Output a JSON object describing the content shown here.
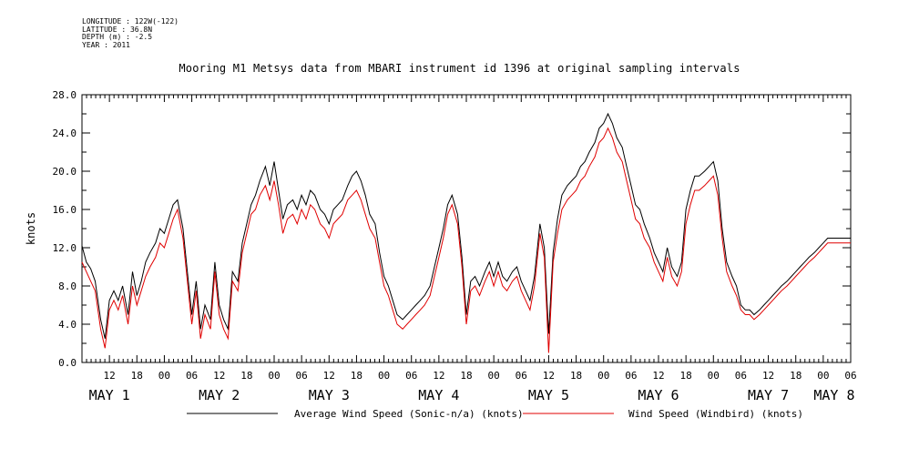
{
  "header": {
    "longitude": "LONGITUDE : 122W(-122)",
    "latitude": "LATITUDE : 36.8N",
    "depth": "DEPTH (m) : -2.5",
    "year": "YEAR : 2011"
  },
  "chart_data": {
    "type": "line",
    "title": "Mooring M1 Metsys data from MBARI instrument id 1396 at original sampling intervals",
    "ylabel": "knots",
    "ylim": [
      0,
      28
    ],
    "yticks": [
      "0.0",
      "4.0",
      "8.0",
      "12.0",
      "16.0",
      "20.0",
      "24.0",
      "28.0"
    ],
    "xlim": [
      1.25,
      8.25
    ],
    "x_unit": "days of May 2011 (hour ticks every 6h)",
    "hour_ticks": [
      {
        "x": 1.5,
        "label": "12"
      },
      {
        "x": 1.75,
        "label": "18"
      },
      {
        "x": 2.0,
        "label": "00"
      },
      {
        "x": 2.25,
        "label": "06"
      },
      {
        "x": 2.5,
        "label": "12"
      },
      {
        "x": 2.75,
        "label": "18"
      },
      {
        "x": 3.0,
        "label": "00"
      },
      {
        "x": 3.25,
        "label": "06"
      },
      {
        "x": 3.5,
        "label": "12"
      },
      {
        "x": 3.75,
        "label": "18"
      },
      {
        "x": 4.0,
        "label": "00"
      },
      {
        "x": 4.25,
        "label": "06"
      },
      {
        "x": 4.5,
        "label": "12"
      },
      {
        "x": 4.75,
        "label": "18"
      },
      {
        "x": 5.0,
        "label": "00"
      },
      {
        "x": 5.25,
        "label": "06"
      },
      {
        "x": 5.5,
        "label": "12"
      },
      {
        "x": 5.75,
        "label": "18"
      },
      {
        "x": 6.0,
        "label": "00"
      },
      {
        "x": 6.25,
        "label": "06"
      },
      {
        "x": 6.5,
        "label": "12"
      },
      {
        "x": 6.75,
        "label": "18"
      },
      {
        "x": 7.0,
        "label": "00"
      },
      {
        "x": 7.25,
        "label": "06"
      },
      {
        "x": 7.5,
        "label": "12"
      },
      {
        "x": 7.75,
        "label": "18"
      },
      {
        "x": 8.0,
        "label": "00"
      },
      {
        "x": 8.25,
        "label": "06"
      }
    ],
    "day_labels": [
      {
        "x": 1.5,
        "label": "MAY  1"
      },
      {
        "x": 2.5,
        "label": "MAY  2"
      },
      {
        "x": 3.5,
        "label": "MAY  3"
      },
      {
        "x": 4.5,
        "label": "MAY  4"
      },
      {
        "x": 5.5,
        "label": "MAY  5"
      },
      {
        "x": 6.5,
        "label": "MAY  6"
      },
      {
        "x": 7.5,
        "label": "MAY  7"
      },
      {
        "x": 8.1,
        "label": "MAY  8"
      }
    ],
    "series": [
      {
        "name": "Average Wind Speed (Sonic-n/a) (knots)",
        "color": "#000000",
        "x": [
          1.25,
          1.29,
          1.33,
          1.37,
          1.42,
          1.46,
          1.5,
          1.54,
          1.58,
          1.62,
          1.67,
          1.71,
          1.75,
          1.79,
          1.83,
          1.87,
          1.92,
          1.96,
          2.0,
          2.04,
          2.08,
          2.12,
          2.17,
          2.21,
          2.25,
          2.29,
          2.33,
          2.37,
          2.42,
          2.46,
          2.5,
          2.54,
          2.58,
          2.62,
          2.67,
          2.71,
          2.75,
          2.79,
          2.83,
          2.87,
          2.92,
          2.96,
          3.0,
          3.04,
          3.08,
          3.12,
          3.17,
          3.21,
          3.25,
          3.29,
          3.33,
          3.37,
          3.42,
          3.46,
          3.5,
          3.54,
          3.58,
          3.62,
          3.67,
          3.71,
          3.75,
          3.79,
          3.83,
          3.87,
          3.92,
          3.96,
          4.0,
          4.04,
          4.08,
          4.12,
          4.17,
          4.21,
          4.25,
          4.29,
          4.33,
          4.37,
          4.42,
          4.46,
          4.5,
          4.54,
          4.58,
          4.62,
          4.67,
          4.71,
          4.75,
          4.79,
          4.83,
          4.87,
          4.92,
          4.96,
          5.0,
          5.04,
          5.08,
          5.12,
          5.17,
          5.21,
          5.25,
          5.29,
          5.33,
          5.37,
          5.42,
          5.46,
          5.5,
          5.54,
          5.58,
          5.62,
          5.67,
          5.71,
          5.75,
          5.79,
          5.83,
          5.87,
          5.92,
          5.96,
          6.0,
          6.04,
          6.08,
          6.12,
          6.17,
          6.21,
          6.25,
          6.29,
          6.33,
          6.37,
          6.42,
          6.46,
          6.5,
          6.54,
          6.58,
          6.62,
          6.67,
          6.71,
          6.75,
          6.79,
          6.83,
          6.87,
          6.92,
          6.96,
          7.0,
          7.04,
          7.08,
          7.12,
          7.17,
          7.21,
          7.25,
          7.29,
          7.33,
          7.37,
          7.42,
          7.46,
          7.5,
          7.54,
          7.58,
          7.62,
          7.67,
          7.71,
          7.75,
          7.79,
          7.83,
          7.87,
          7.92,
          7.96,
          8.0,
          8.04,
          8.08,
          8.12,
          8.17,
          8.21,
          8.25
        ],
        "values": [
          12.2,
          10.5,
          9.8,
          8.5,
          4.5,
          2.5,
          6.5,
          7.5,
          6.5,
          8.0,
          5.0,
          9.5,
          7.0,
          8.5,
          10.5,
          11.5,
          12.5,
          14.0,
          13.5,
          15.0,
          16.5,
          17.0,
          14.0,
          9.5,
          5.0,
          8.5,
          3.5,
          6.0,
          4.5,
          10.5,
          6.0,
          4.5,
          3.5,
          9.5,
          8.5,
          12.5,
          14.5,
          16.5,
          17.5,
          19.0,
          20.5,
          18.5,
          21.0,
          18.0,
          15.0,
          16.5,
          17.0,
          16.0,
          17.5,
          16.5,
          18.0,
          17.5,
          16.0,
          15.5,
          14.5,
          16.0,
          16.5,
          17.0,
          18.5,
          19.5,
          20.0,
          19.0,
          17.5,
          15.5,
          14.5,
          11.5,
          9.0,
          8.0,
          6.5,
          5.0,
          4.5,
          5.0,
          5.5,
          6.0,
          6.5,
          7.0,
          8.0,
          10.0,
          12.0,
          14.0,
          16.5,
          17.5,
          15.5,
          11.0,
          5.0,
          8.5,
          9.0,
          8.0,
          9.5,
          10.5,
          9.0,
          10.5,
          9.0,
          8.5,
          9.5,
          10.0,
          8.5,
          7.5,
          6.5,
          9.0,
          14.5,
          12.0,
          3.0,
          11.5,
          15.0,
          17.5,
          18.5,
          19.0,
          19.5,
          20.5,
          21.0,
          22.0,
          23.0,
          24.5,
          25.0,
          26.0,
          25.0,
          23.5,
          22.5,
          20.5,
          18.5,
          16.5,
          16.0,
          14.5,
          13.0,
          11.5,
          10.5,
          9.5,
          12.0,
          10.0,
          9.0,
          10.5,
          16.0,
          18.0,
          19.5,
          19.5,
          20.0,
          20.5,
          21.0,
          19.0,
          14.0,
          10.5,
          9.0,
          8.0,
          6.0,
          5.5,
          5.5,
          5.0,
          5.5,
          6.0,
          6.5,
          7.0,
          7.5,
          8.0,
          8.5,
          9.0,
          9.5,
          10.0,
          10.5,
          11.0,
          11.5,
          12.0,
          12.5,
          13.0,
          13.0,
          13.0,
          13.0,
          13.0,
          13.0
        ],
        "note": "approximate; visual sampling"
      },
      {
        "name": "Wind Speed (Windbird) (knots)",
        "color": "#e00000",
        "x": [
          1.25,
          1.29,
          1.33,
          1.37,
          1.42,
          1.46,
          1.5,
          1.54,
          1.58,
          1.62,
          1.67,
          1.71,
          1.75,
          1.79,
          1.83,
          1.87,
          1.92,
          1.96,
          2.0,
          2.04,
          2.08,
          2.12,
          2.17,
          2.21,
          2.25,
          2.29,
          2.33,
          2.37,
          2.42,
          2.46,
          2.5,
          2.54,
          2.58,
          2.62,
          2.67,
          2.71,
          2.75,
          2.79,
          2.83,
          2.87,
          2.92,
          2.96,
          3.0,
          3.04,
          3.08,
          3.12,
          3.17,
          3.21,
          3.25,
          3.29,
          3.33,
          3.37,
          3.42,
          3.46,
          3.5,
          3.54,
          3.58,
          3.62,
          3.67,
          3.71,
          3.75,
          3.79,
          3.83,
          3.87,
          3.92,
          3.96,
          4.0,
          4.04,
          4.08,
          4.12,
          4.17,
          4.21,
          4.25,
          4.29,
          4.33,
          4.37,
          4.42,
          4.46,
          4.5,
          4.54,
          4.58,
          4.62,
          4.67,
          4.71,
          4.75,
          4.79,
          4.83,
          4.87,
          4.92,
          4.96,
          5.0,
          5.04,
          5.08,
          5.12,
          5.17,
          5.21,
          5.25,
          5.29,
          5.33,
          5.37,
          5.42,
          5.46,
          5.5,
          5.54,
          5.58,
          5.62,
          5.67,
          5.71,
          5.75,
          5.79,
          5.83,
          5.87,
          5.92,
          5.96,
          6.0,
          6.04,
          6.08,
          6.12,
          6.17,
          6.21,
          6.25,
          6.29,
          6.33,
          6.37,
          6.42,
          6.46,
          6.5,
          6.54,
          6.58,
          6.62,
          6.67,
          6.71,
          6.75,
          6.79,
          6.83,
          6.87,
          6.92,
          6.96,
          7.0,
          7.04,
          7.08,
          7.12,
          7.17,
          7.21,
          7.25,
          7.29,
          7.33,
          7.37,
          7.42,
          7.46,
          7.5,
          7.54,
          7.58,
          7.62,
          7.67,
          7.71,
          7.75,
          7.79,
          7.83,
          7.87,
          7.92,
          7.96,
          8.0,
          8.04,
          8.08,
          8.12,
          8.17,
          8.21,
          8.25
        ],
        "values": [
          10.5,
          9.5,
          8.5,
          7.5,
          3.5,
          1.5,
          5.5,
          6.5,
          5.5,
          7.0,
          4.0,
          8.0,
          6.0,
          7.5,
          9.0,
          10.0,
          11.0,
          12.5,
          12.0,
          13.5,
          15.0,
          16.0,
          13.0,
          8.5,
          4.0,
          7.5,
          2.5,
          5.0,
          3.5,
          9.5,
          5.0,
          3.5,
          2.5,
          8.5,
          7.5,
          11.5,
          13.5,
          15.5,
          16.0,
          17.5,
          18.5,
          17.0,
          19.0,
          16.5,
          13.5,
          15.0,
          15.5,
          14.5,
          16.0,
          15.0,
          16.5,
          16.0,
          14.5,
          14.0,
          13.0,
          14.5,
          15.0,
          15.5,
          17.0,
          17.5,
          18.0,
          17.0,
          15.5,
          14.0,
          13.0,
          10.5,
          8.0,
          7.0,
          5.5,
          4.0,
          3.5,
          4.0,
          4.5,
          5.0,
          5.5,
          6.0,
          7.0,
          9.0,
          11.0,
          13.0,
          15.5,
          16.5,
          14.5,
          10.0,
          4.0,
          7.5,
          8.0,
          7.0,
          8.5,
          9.5,
          8.0,
          9.5,
          8.0,
          7.5,
          8.5,
          9.0,
          7.5,
          6.5,
          5.5,
          8.0,
          13.5,
          11.0,
          1.0,
          10.5,
          13.5,
          16.0,
          17.0,
          17.5,
          18.0,
          19.0,
          19.5,
          20.5,
          21.5,
          23.0,
          23.5,
          24.5,
          23.5,
          22.0,
          21.0,
          19.0,
          17.0,
          15.0,
          14.5,
          13.0,
          12.0,
          10.5,
          9.5,
          8.5,
          11.0,
          9.0,
          8.0,
          9.5,
          14.5,
          16.5,
          18.0,
          18.0,
          18.5,
          19.0,
          19.5,
          17.5,
          13.0,
          9.5,
          8.0,
          7.0,
          5.5,
          5.0,
          5.0,
          4.5,
          5.0,
          5.5,
          6.0,
          6.5,
          7.0,
          7.5,
          8.0,
          8.5,
          9.0,
          9.5,
          10.0,
          10.5,
          11.0,
          11.5,
          12.0,
          12.5,
          12.5,
          12.5,
          12.5,
          12.5,
          12.5
        ],
        "note": "approximate; visual sampling"
      }
    ]
  }
}
